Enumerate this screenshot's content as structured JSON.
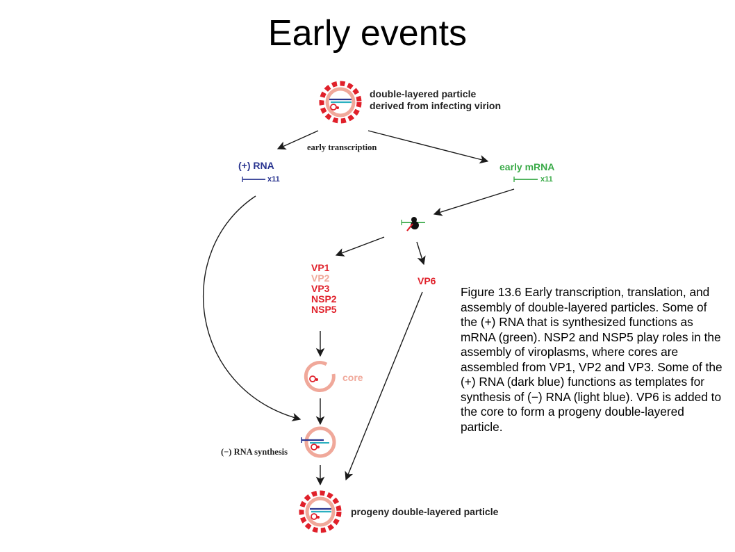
{
  "title": "Early events",
  "labels": {
    "parent_particle_line1": "double-layered particle",
    "parent_particle_line2": "derived from infecting virion",
    "early_transcription": "early transcription",
    "plus_rna": "(+) RNA",
    "plus_rna_copies": "x11",
    "early_mrna": "early mRNA",
    "early_mrna_copies": "x11",
    "vp6": "VP6",
    "core": "core",
    "minus_rna_synthesis": "(−) RNA synthesis",
    "progeny_particle": "progeny double-layered particle"
  },
  "proteins": [
    {
      "name": "VP1",
      "color": "#e0202a"
    },
    {
      "name": "VP2",
      "color": "#f0a89a"
    },
    {
      "name": "VP3",
      "color": "#e0202a"
    },
    {
      "name": "NSP2",
      "color": "#e0202a"
    },
    {
      "name": "NSP5",
      "color": "#e0202a"
    }
  ],
  "caption": "Figure 13.6 Early transcription, translation, and assembly of double-layered particles. Some of the (+) RNA that is synthesized functions as mRNA (green). NSP2 and NSP5 play roles in the assembly of viroplasms, where cores are assembled from VP1, VP2 and VP3. Some of the (+) RNA (dark blue) functions as templates for synthesis of (−) RNA (light blue). VP6 is added to the core to form a progeny double-layered particle.",
  "colors": {
    "red": "#e0202a",
    "pink": "#f0a89a",
    "dark_blue": "#2a3590",
    "light_blue": "#2ab0c0",
    "green": "#3aaa48",
    "arrow": "#1a1a1a"
  }
}
